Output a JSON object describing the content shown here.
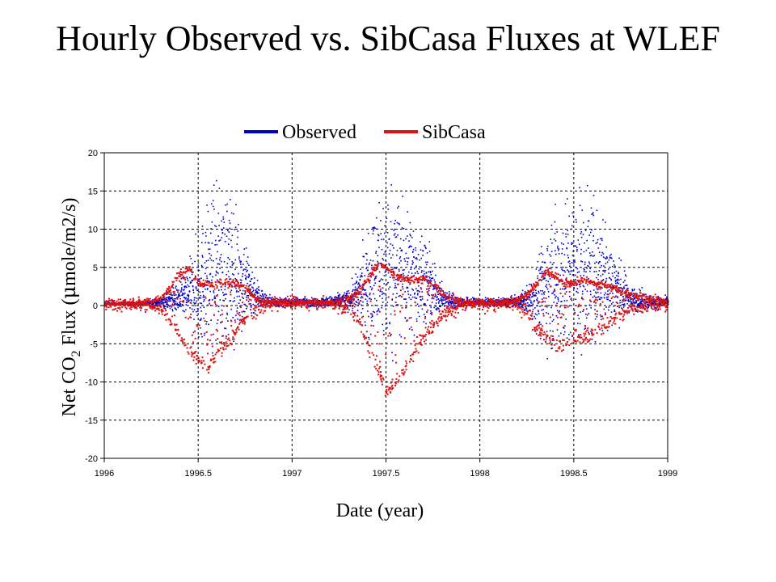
{
  "title": "Hourly Observed vs. SibCasa Fluxes at WLEF",
  "colors": {
    "observed": "#0000cc",
    "sibcasa": "#dd1111",
    "grid": "#000000"
  },
  "chart_data": {
    "type": "scatter",
    "title": "Hourly Observed vs. SibCasa Fluxes at WLEF",
    "xlabel": "Date (year)",
    "ylabel": "Net CO₂ Flux (µmole/m2/s)",
    "ylabel_parts": {
      "prefix": "Net CO",
      "sub": "2",
      "suffix": " Flux (",
      "mu": "μ",
      "unit": "mole/m2/s)"
    },
    "xlim": [
      1996,
      1999
    ],
    "ylim": [
      -20,
      20
    ],
    "xticks": [
      1996,
      1996.5,
      1997,
      1997.5,
      1998,
      1998.5,
      1999
    ],
    "xtick_labels": [
      "1996",
      "1996.5",
      "1997",
      "1997.5",
      "1998",
      "1998.5",
      "1999"
    ],
    "yticks": [
      -20,
      -15,
      -10,
      -5,
      0,
      5,
      10,
      15,
      20
    ],
    "ytick_labels": [
      "-20",
      "-15",
      "-10",
      "-5",
      "0",
      "5",
      "10",
      "15",
      "20"
    ],
    "grid": true,
    "legend_position": "top-center",
    "series": [
      {
        "name": "Observed",
        "color": "#0000cc",
        "x": [
          1996.0,
          1996.1,
          1996.2,
          1996.3,
          1996.4,
          1996.45,
          1996.5,
          1996.55,
          1996.6,
          1996.65,
          1996.7,
          1996.75,
          1996.8,
          1996.85,
          1996.9,
          1997.0,
          1997.1,
          1997.2,
          1997.3,
          1997.35,
          1997.4,
          1997.45,
          1997.5,
          1997.55,
          1997.6,
          1997.65,
          1997.7,
          1997.75,
          1997.8,
          1997.9,
          1998.0,
          1998.1,
          1998.2,
          1998.25,
          1998.3,
          1998.35,
          1998.4,
          1998.45,
          1998.5,
          1998.55,
          1998.6,
          1998.65,
          1998.7,
          1998.75,
          1998.8,
          1998.9,
          1999.0
        ],
        "y": [
          0.3,
          0.3,
          0.4,
          0.5,
          1.0,
          1.5,
          2.5,
          4.0,
          5.0,
          5.0,
          4.0,
          3.0,
          1.5,
          0.8,
          0.5,
          0.5,
          0.5,
          0.6,
          0.8,
          1.5,
          3.0,
          4.5,
          5.0,
          5.0,
          4.5,
          4.0,
          3.5,
          2.0,
          1.0,
          0.5,
          0.5,
          0.5,
          0.6,
          0.8,
          1.5,
          2.5,
          3.5,
          4.0,
          4.0,
          4.5,
          4.5,
          4.0,
          3.0,
          2.0,
          1.0,
          0.5,
          0.4
        ],
        "spread": [
          0.2,
          0.3,
          0.4,
          1.0,
          3.0,
          6.0,
          11.0,
          14.0,
          15.0,
          15.0,
          13.0,
          9.0,
          4.0,
          1.5,
          1.0,
          0.8,
          0.8,
          1.0,
          2.0,
          5.0,
          10.0,
          14.0,
          16.0,
          15.0,
          13.0,
          11.0,
          9.0,
          5.0,
          2.0,
          1.0,
          0.8,
          0.8,
          1.0,
          3.0,
          7.0,
          11.0,
          14.0,
          15.0,
          15.0,
          15.0,
          14.0,
          12.0,
          9.0,
          5.0,
          2.5,
          1.5,
          1.0
        ]
      },
      {
        "name": "SibCasa",
        "color": "#dd1111",
        "x": [
          1996.0,
          1996.1,
          1996.2,
          1996.3,
          1996.35,
          1996.4,
          1996.45,
          1996.5,
          1996.55,
          1996.6,
          1996.65,
          1996.7,
          1996.75,
          1996.8,
          1996.85,
          1996.9,
          1997.0,
          1997.1,
          1997.2,
          1997.3,
          1997.35,
          1997.4,
          1997.45,
          1997.5,
          1997.55,
          1997.6,
          1997.65,
          1997.7,
          1997.75,
          1997.8,
          1997.9,
          1998.0,
          1998.1,
          1998.2,
          1998.25,
          1998.3,
          1998.35,
          1998.4,
          1998.45,
          1998.5,
          1998.55,
          1998.6,
          1998.65,
          1998.7,
          1998.75,
          1998.8,
          1998.9,
          1999.0
        ],
        "upper": [
          0.3,
          0.4,
          0.5,
          1.0,
          2.5,
          4.5,
          5.0,
          3.0,
          3.0,
          3.0,
          3.0,
          3.0,
          2.5,
          1.0,
          0.6,
          0.5,
          0.5,
          0.5,
          0.6,
          1.0,
          2.0,
          3.5,
          5.5,
          5.0,
          4.0,
          3.5,
          3.5,
          3.5,
          3.0,
          1.5,
          0.6,
          0.5,
          0.5,
          0.8,
          1.5,
          3.0,
          4.5,
          4.0,
          3.0,
          3.0,
          3.5,
          3.0,
          3.0,
          2.5,
          2.0,
          1.5,
          1.0,
          0.8
        ],
        "lower": [
          0.3,
          0.3,
          0.2,
          -0.5,
          -2.0,
          -4.0,
          -6.0,
          -7.0,
          -8.0,
          -6.0,
          -5.0,
          -3.0,
          -1.5,
          -0.5,
          0.0,
          0.3,
          0.3,
          0.3,
          0.2,
          -0.5,
          -2.0,
          -5.0,
          -8.0,
          -11.0,
          -10.0,
          -8.0,
          -6.0,
          -4.0,
          -2.5,
          -1.0,
          0.0,
          0.3,
          0.3,
          0.0,
          -1.0,
          -3.0,
          -4.0,
          -5.0,
          -5.0,
          -4.5,
          -4.0,
          -3.5,
          -3.0,
          -2.0,
          -1.0,
          -0.5,
          0.0,
          0.2
        ]
      }
    ]
  }
}
